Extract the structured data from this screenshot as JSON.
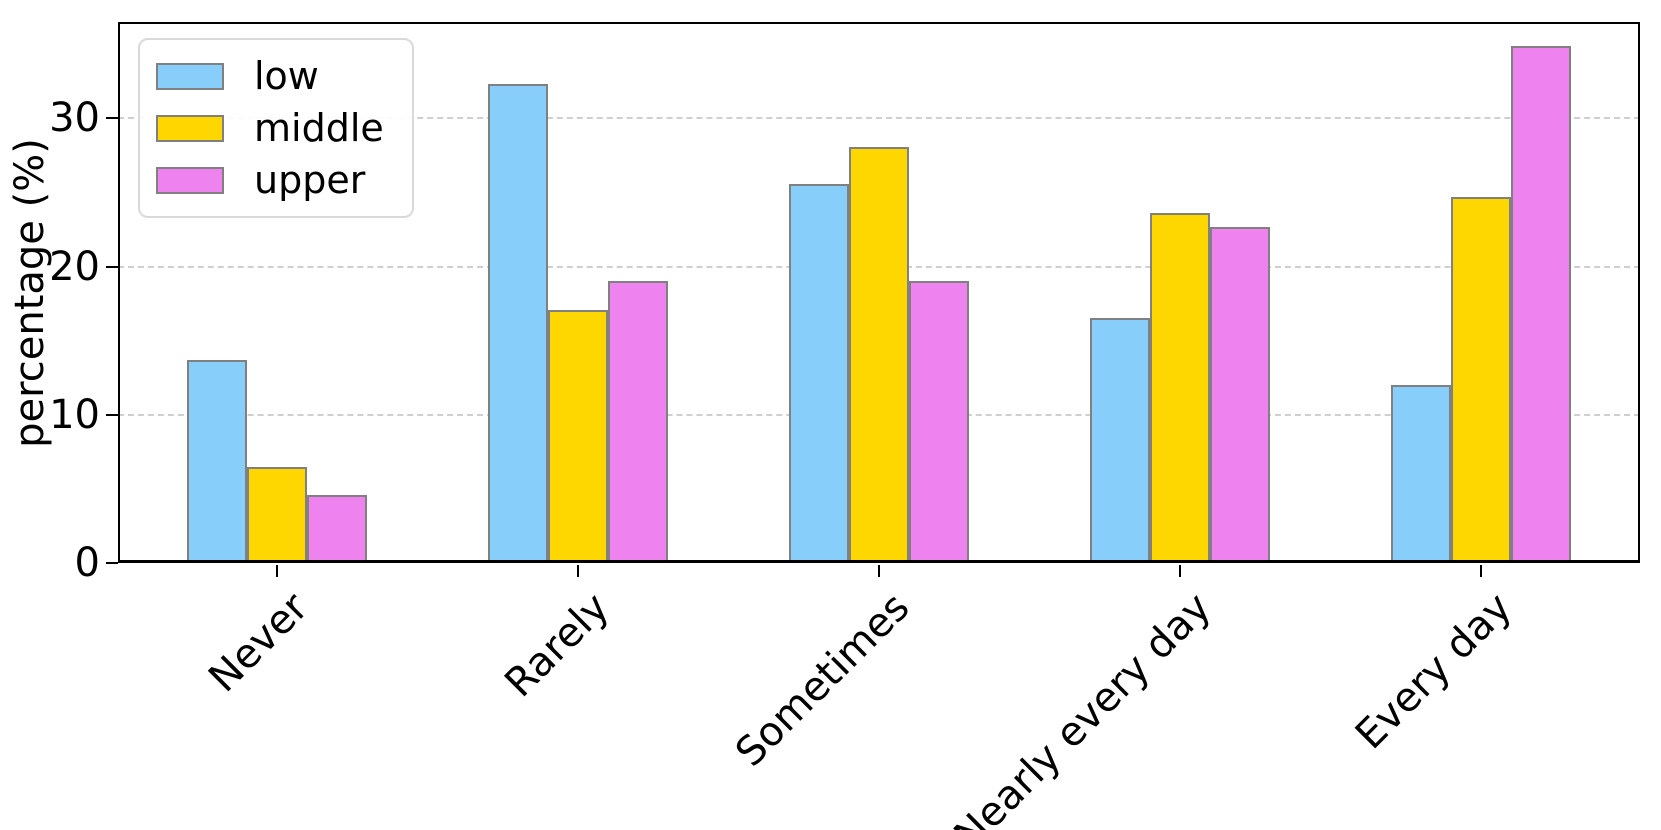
{
  "chart_data": {
    "type": "bar",
    "title": "",
    "xlabel": "",
    "ylabel": "percentage (%)",
    "categories": [
      "Never",
      "Rarely",
      "Sometimes",
      "Nearly every day",
      "Every day"
    ],
    "series": [
      {
        "name": "low",
        "color": "#87CEFA",
        "values": [
          13.7,
          32.3,
          25.6,
          16.5,
          12.0
        ]
      },
      {
        "name": "middle",
        "color": "#FFD700",
        "values": [
          6.5,
          17.1,
          28.1,
          23.6,
          24.7
        ]
      },
      {
        "name": "upper",
        "color": "#EE82EE",
        "values": [
          4.6,
          19.0,
          19.0,
          22.7,
          34.9
        ]
      }
    ],
    "ylim": [
      0,
      36.5
    ],
    "yticks": [
      0,
      10,
      20,
      30
    ],
    "grid": "horizontal-dashed",
    "grid_color": "#cfcfcf",
    "bar_edge_color": "#808080",
    "axis_color": "#000000",
    "legend_position": "upper-left",
    "x_tick_rotation_deg": 45
  }
}
